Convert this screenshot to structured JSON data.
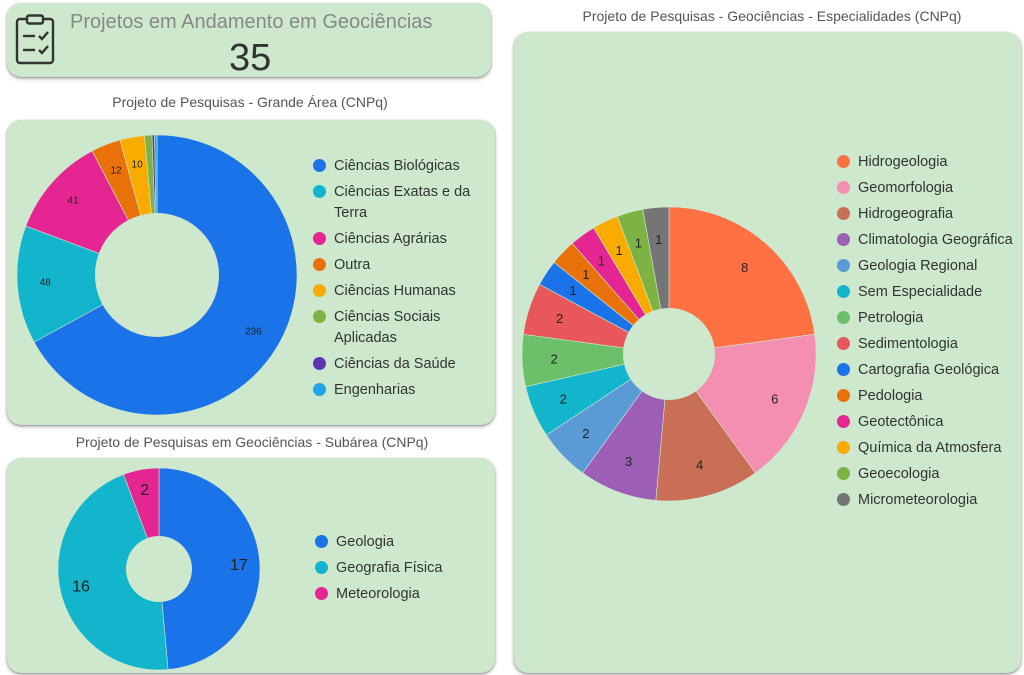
{
  "kpi": {
    "label": "Projetos em Andamento em Geociências",
    "value": "35",
    "icon": "clipboard-check-icon"
  },
  "chart_data": [
    {
      "id": "grande-area",
      "type": "pie",
      "donut": true,
      "title": "Projeto de Pesquisas - Grande Área (CNPq)",
      "categories": [
        "Ciências Biológicas",
        "Ciências Exatas e da Terra",
        "Ciências Agrárias",
        "Outra",
        "Ciências Humanas",
        "Ciências Sociais Aplicadas",
        "Ciências da Saúde",
        "Engenharias"
      ],
      "values": [
        236,
        48,
        41,
        12,
        10,
        3,
        1,
        1
      ],
      "labels": [
        "236",
        "48",
        "41",
        "12",
        "10",
        "",
        "",
        ""
      ],
      "colors": [
        "#1a73e8",
        "#12b5cb",
        "#e52592",
        "#e8710a",
        "#f9ab00",
        "#7cb342",
        "#5e35b1",
        "#1ea6e6"
      ],
      "legend": "right"
    },
    {
      "id": "subarea",
      "type": "pie",
      "donut": true,
      "title": "Projeto de Pesquisas em Geociências - Subárea (CNPq)",
      "categories": [
        "Geologia",
        "Geografia Física",
        "Meteorologia"
      ],
      "values": [
        17,
        16,
        2
      ],
      "labels": [
        "17",
        "16",
        "2"
      ],
      "colors": [
        "#1a73e8",
        "#12b5cb",
        "#e52592"
      ],
      "legend": "right"
    },
    {
      "id": "especialidades",
      "type": "pie",
      "donut": true,
      "title": "Projeto de Pesquisas - Geociências - Especialidades (CNPq)",
      "categories": [
        "Hidrogeologia",
        "Geomorfologia",
        "Hidrogeografia",
        "Climatologia Geográfica",
        "Geologia Regional",
        "Sem Especialidade",
        "Petrologia",
        "Sedimentologia",
        "Cartografia Geológica",
        "Pedologia",
        "Geotectônica",
        "Química da Atmosfera",
        "Geoecologia",
        "Micrometeorologia"
      ],
      "values": [
        8,
        6,
        4,
        3,
        2,
        2,
        2,
        2,
        1,
        1,
        1,
        1,
        1,
        1
      ],
      "labels": [
        "8",
        "6",
        "4",
        "3",
        "2",
        "2",
        "2",
        "2",
        "1",
        "1",
        "1",
        "1",
        "1",
        "1"
      ],
      "colors": [
        "#ff7043",
        "#f48fb1",
        "#c96f55",
        "#9c5fb5",
        "#5b9bd5",
        "#12b5cb",
        "#6cc06a",
        "#e8575a",
        "#1a73e8",
        "#e8710a",
        "#e52592",
        "#f9ab00",
        "#7cb342",
        "#757575"
      ],
      "legend": "right"
    }
  ]
}
